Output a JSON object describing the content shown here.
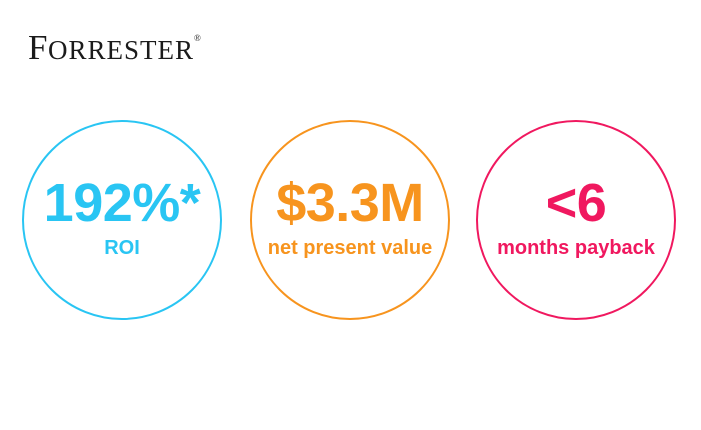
{
  "page": {
    "background": "#FFFFFF"
  },
  "logo": {
    "first_letter": "F",
    "rest": "ORRESTER",
    "registered_mark": "®",
    "color": "#1B1B1B"
  },
  "stats": [
    {
      "value": "192%*",
      "label": "ROI",
      "color": "#29C5F3"
    },
    {
      "value": "$3.3M",
      "label": "net present value",
      "color": "#F7941E"
    },
    {
      "value": "<6",
      "label": "months payback",
      "color": "#F0185F"
    }
  ],
  "chart_data": {
    "type": "table",
    "categories": [
      "ROI",
      "net present value",
      "months payback"
    ],
    "values": [
      "192%*",
      "$3.3M",
      "<6"
    ],
    "colors": [
      "#29C5F3",
      "#F7941E",
      "#F0185F"
    ],
    "legend": "none",
    "layout": "three outlined stat circles in a row on white background"
  }
}
